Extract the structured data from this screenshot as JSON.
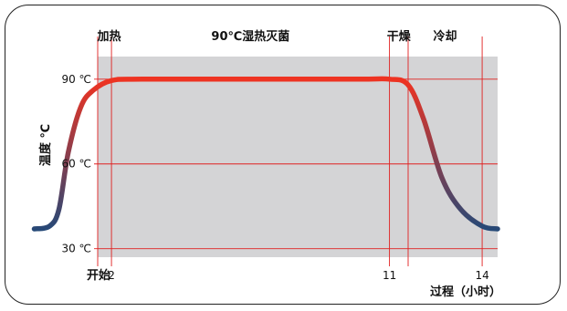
{
  "chart_data": {
    "type": "line",
    "title": "",
    "xlabel": "过程（小时）",
    "ylabel": "温度 ℃",
    "xlim": [
      -0.5,
      14.5
    ],
    "ylim": [
      27,
      98
    ],
    "grid": true,
    "x_ticks": [
      {
        "value": 0,
        "label": "开始"
      },
      {
        "value": 2,
        "label": "2"
      },
      {
        "value": 11,
        "label": "11"
      },
      {
        "value": 14,
        "label": "14"
      }
    ],
    "y_ticks": [
      {
        "value": 30,
        "label": "30 ℃"
      },
      {
        "value": 60,
        "label": "60 ℃"
      },
      {
        "value": 90,
        "label": "90 ℃"
      }
    ],
    "phases": [
      {
        "label": "加热",
        "start": 0,
        "end": 2
      },
      {
        "label": "90℃湿热灭菌",
        "start": 2,
        "end": 11
      },
      {
        "label": "干燥",
        "start": 11,
        "end": 12
      },
      {
        "label": "冷却",
        "start": 12,
        "end": 14
      }
    ],
    "series": [
      {
        "x": [
          -0.5,
          0,
          0.3,
          0.6,
          1.0,
          1.4,
          2.0,
          3.0,
          6.5,
          10.0,
          11.0,
          11.6,
          12.1,
          12.7,
          13.3,
          14.0,
          14.5
        ],
        "y": [
          37,
          38,
          44,
          64,
          80,
          86,
          89.5,
          90,
          90,
          90,
          90,
          88,
          76,
          55,
          44,
          38,
          37
        ]
      }
    ],
    "colors": {
      "plot_background": "#d4d4d6",
      "grid": "#e02020",
      "line_hot": "#ee3322",
      "line_cool": "#1a4a7c"
    }
  }
}
